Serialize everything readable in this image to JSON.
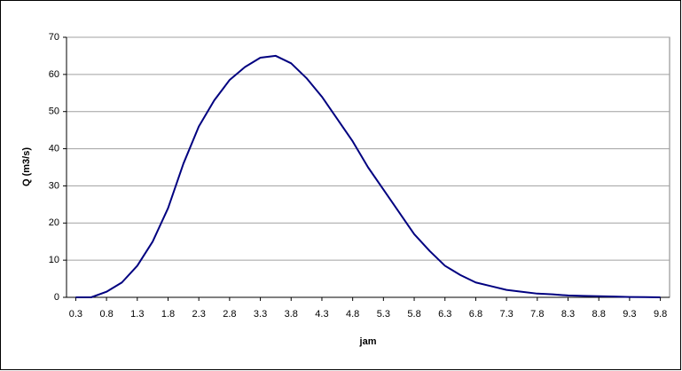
{
  "chart_data": {
    "type": "line",
    "x_label": "jam",
    "y_label": "Q (m3/s)",
    "x": [
      0.3,
      0.55,
      0.8,
      1.05,
      1.3,
      1.55,
      1.8,
      2.05,
      2.3,
      2.55,
      2.8,
      3.05,
      3.3,
      3.55,
      3.8,
      4.05,
      4.3,
      4.55,
      4.8,
      5.05,
      5.3,
      5.55,
      5.8,
      6.05,
      6.3,
      6.55,
      6.8,
      7.05,
      7.3,
      7.55,
      7.8,
      8.05,
      8.3,
      8.55,
      8.8,
      9.05,
      9.3,
      9.55,
      9.8
    ],
    "values": [
      0,
      0,
      1.5,
      4,
      8.5,
      15,
      24,
      36,
      46,
      53,
      58.5,
      62,
      64.5,
      65,
      63,
      59,
      54,
      48,
      42,
      35,
      29,
      23,
      17,
      12.5,
      8.5,
      6,
      4,
      3,
      2,
      1.5,
      1,
      0.8,
      0.5,
      0.4,
      0.3,
      0.2,
      0.1,
      0.05,
      0
    ],
    "color": "#000080",
    "xlim": [
      0.15,
      9.95
    ],
    "xticks": [
      0.3,
      0.8,
      1.3,
      1.8,
      2.3,
      2.8,
      3.3,
      3.8,
      4.3,
      4.8,
      5.3,
      5.8,
      6.3,
      6.8,
      7.3,
      7.8,
      8.3,
      8.8,
      9.3,
      9.8
    ],
    "ylim": [
      0,
      70
    ],
    "yticks": [
      0,
      10,
      20,
      30,
      40,
      50,
      60,
      70
    ],
    "grid": true
  }
}
